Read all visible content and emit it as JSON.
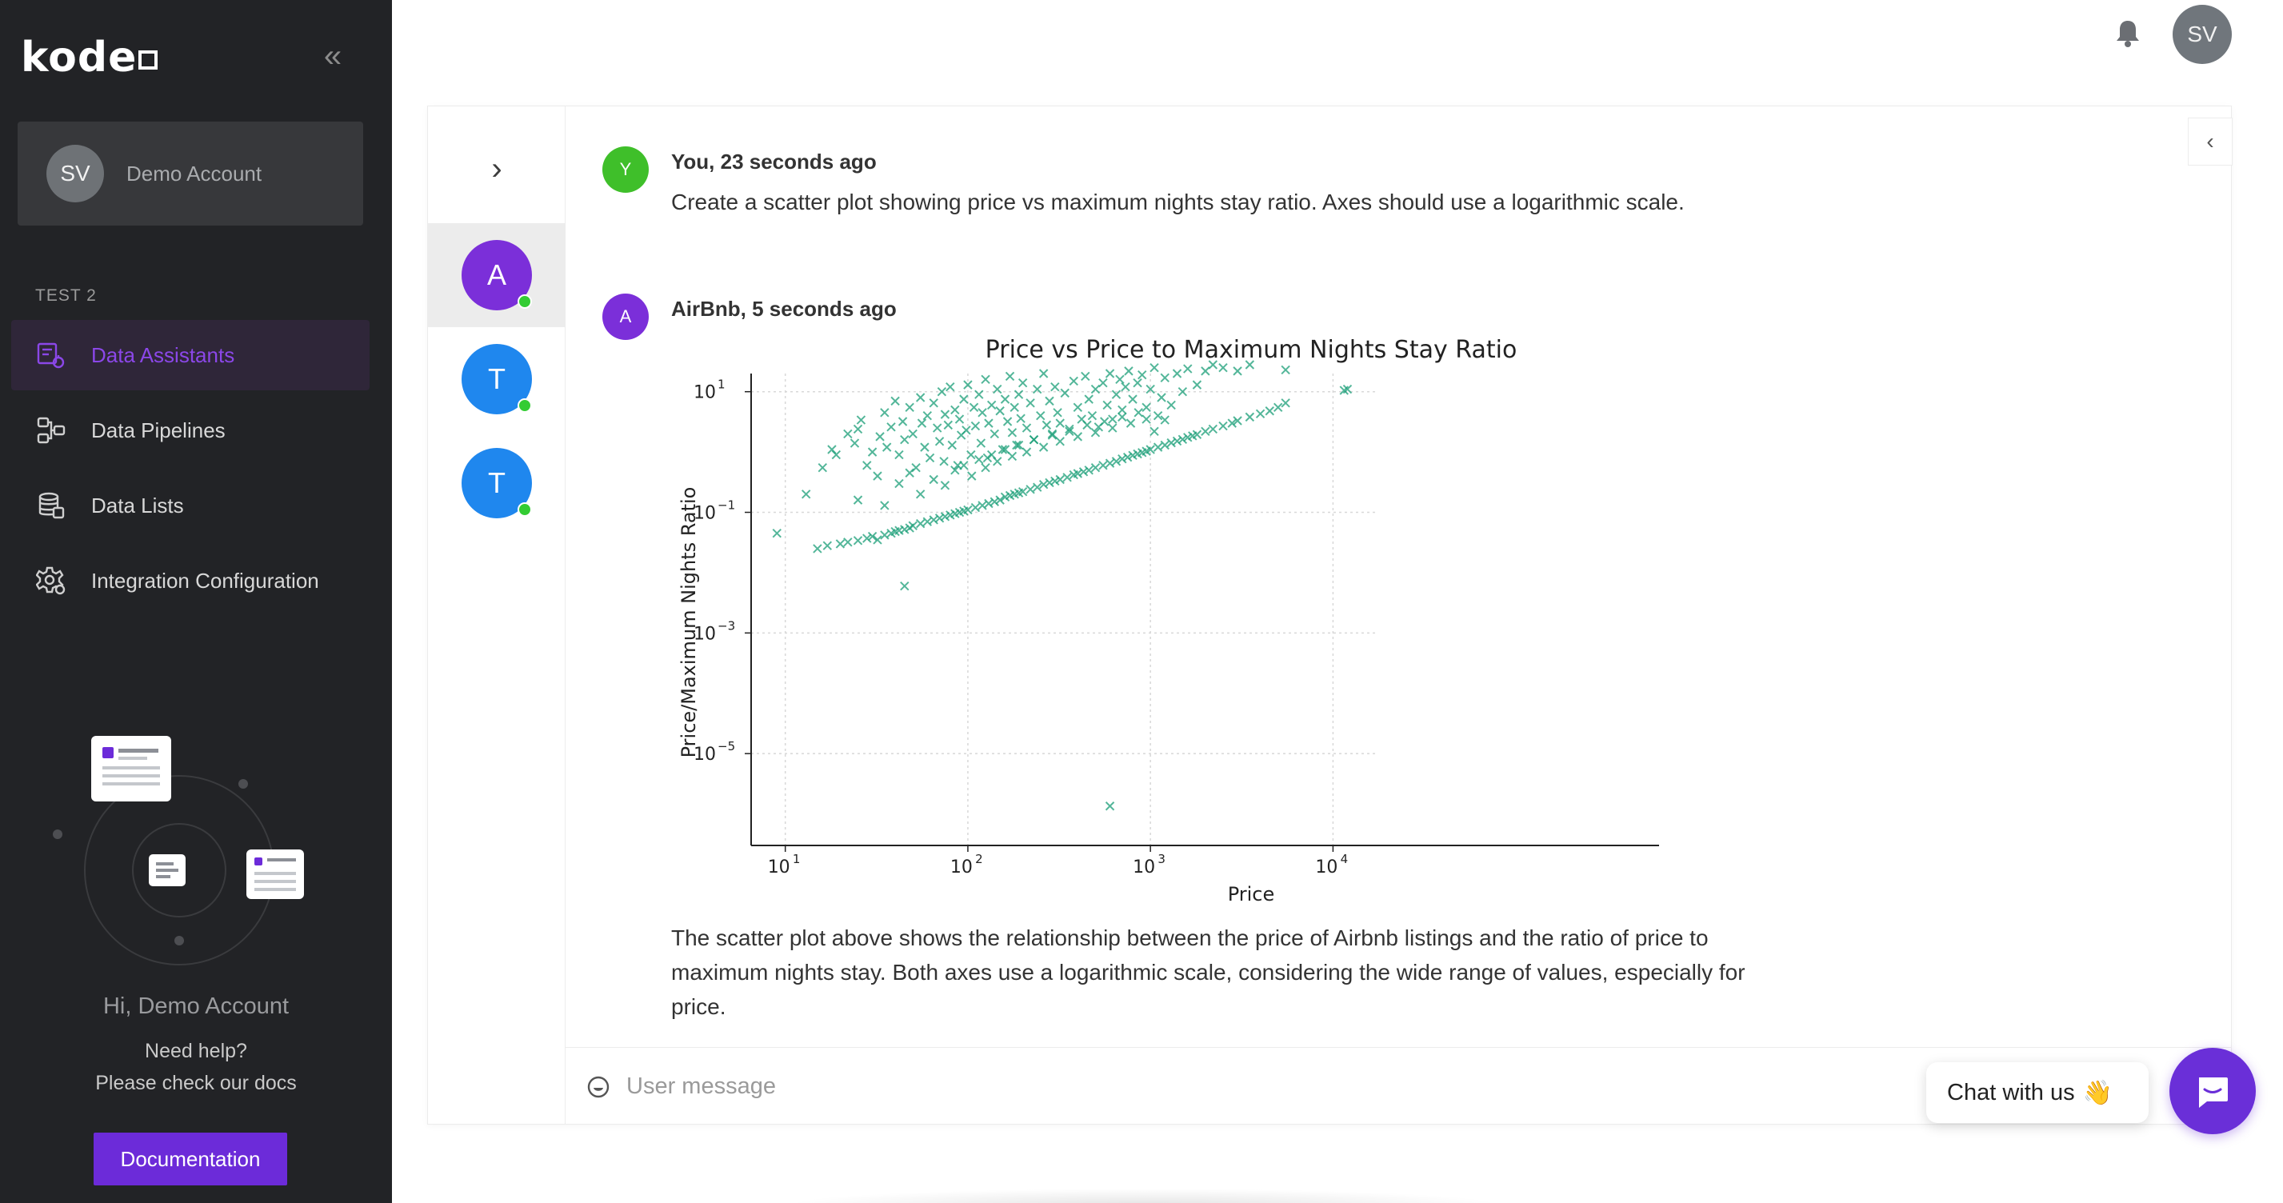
{
  "sidebar": {
    "logo": "kode",
    "account": {
      "initials": "SV",
      "name": "Demo Account"
    },
    "section_label": "TEST 2",
    "items": [
      {
        "label": "Data Assistants",
        "icon": "assistant-icon",
        "active": true
      },
      {
        "label": "Data Pipelines",
        "icon": "pipeline-icon",
        "active": false
      },
      {
        "label": "Data Lists",
        "icon": "database-icon",
        "active": false
      },
      {
        "label": "Integration Configuration",
        "icon": "settings-cog-icon",
        "active": false
      }
    ],
    "greeting": "Hi, Demo Account",
    "help_line1": "Need help?",
    "help_line2": "Please check our docs",
    "docs_button": "Documentation"
  },
  "header": {
    "avatar_initials": "SV"
  },
  "assistants": [
    {
      "initial": "A",
      "color": "#7b2fd9",
      "online": true,
      "active": true
    },
    {
      "initial": "T",
      "color": "#1f87ee",
      "online": true,
      "active": false
    },
    {
      "initial": "T",
      "color": "#1f87ee",
      "online": true,
      "active": false
    }
  ],
  "conversation": {
    "user_message": {
      "initial": "Y",
      "avatar_color": "#3fbf2a",
      "header": "You,  23 seconds ago",
      "text": "Create a scatter plot showing price vs maximum nights stay ratio. Axes should use a logarithmic scale."
    },
    "assistant_message": {
      "initial": "A",
      "avatar_color": "#7b2fd9",
      "header": "AirBnb,  5 seconds ago",
      "text": "The scatter plot above shows the relationship between the price of Airbnb listings and the ratio of price to maximum nights stay. Both axes use a logarithmic scale, considering the wide range of values, especially for price."
    }
  },
  "input": {
    "placeholder": "User message"
  },
  "chat_widget": {
    "label": "Chat with us",
    "emoji": "👋"
  },
  "chart_data": {
    "type": "scatter",
    "title": "Price vs Price to Maximum Nights Stay Ratio",
    "xlabel": "Price",
    "ylabel": "Price/Maximum Nights Ratio",
    "xscale": "log",
    "yscale": "log",
    "xlim": [
      6.5,
      17000
    ],
    "ylim": [
      3e-07,
      20
    ],
    "x_ticks": [
      {
        "base": "10",
        "exp": "1",
        "value": 10
      },
      {
        "base": "10",
        "exp": "2",
        "value": 100
      },
      {
        "base": "10",
        "exp": "3",
        "value": 1000
      },
      {
        "base": "10",
        "exp": "4",
        "value": 10000
      }
    ],
    "y_ticks": [
      {
        "base": "10",
        "exp": "1",
        "value": 10
      },
      {
        "base": "10",
        "exp": "−1",
        "value": 0.1
      },
      {
        "base": "10",
        "exp": "−3",
        "value": 0.001
      },
      {
        "base": "10",
        "exp": "−5",
        "value": 1e-05
      }
    ],
    "grid": true,
    "marker": "x",
    "color": "#1a9e77",
    "points": [
      [
        9,
        0.045
      ],
      [
        15,
        0.025
      ],
      [
        17,
        0.028
      ],
      [
        20,
        0.03
      ],
      [
        22,
        0.032
      ],
      [
        25,
        0.034
      ],
      [
        28,
        0.037
      ],
      [
        30,
        0.04
      ],
      [
        32,
        0.035
      ],
      [
        35,
        0.042
      ],
      [
        38,
        0.045
      ],
      [
        40,
        0.048
      ],
      [
        42,
        0.05
      ],
      [
        45,
        0.052
      ],
      [
        48,
        0.055
      ],
      [
        50,
        0.06
      ],
      [
        55,
        0.065
      ],
      [
        60,
        0.07
      ],
      [
        65,
        0.075
      ],
      [
        70,
        0.08
      ],
      [
        75,
        0.085
      ],
      [
        80,
        0.09
      ],
      [
        85,
        0.095
      ],
      [
        90,
        0.1
      ],
      [
        95,
        0.105
      ],
      [
        100,
        0.11
      ],
      [
        110,
        0.12
      ],
      [
        120,
        0.13
      ],
      [
        130,
        0.14
      ],
      [
        140,
        0.15
      ],
      [
        150,
        0.16
      ],
      [
        160,
        0.18
      ],
      [
        170,
        0.19
      ],
      [
        180,
        0.2
      ],
      [
        190,
        0.21
      ],
      [
        200,
        0.22
      ],
      [
        220,
        0.24
      ],
      [
        240,
        0.26
      ],
      [
        260,
        0.29
      ],
      [
        280,
        0.31
      ],
      [
        300,
        0.33
      ],
      [
        320,
        0.35
      ],
      [
        350,
        0.38
      ],
      [
        380,
        0.42
      ],
      [
        400,
        0.44
      ],
      [
        430,
        0.47
      ],
      [
        460,
        0.5
      ],
      [
        500,
        0.55
      ],
      [
        550,
        0.6
      ],
      [
        600,
        0.65
      ],
      [
        650,
        0.7
      ],
      [
        700,
        0.77
      ],
      [
        750,
        0.82
      ],
      [
        800,
        0.88
      ],
      [
        850,
        0.93
      ],
      [
        900,
        0.98
      ],
      [
        950,
        1.03
      ],
      [
        1000,
        1.1
      ],
      [
        1100,
        1.2
      ],
      [
        1200,
        1.3
      ],
      [
        1300,
        1.42
      ],
      [
        1400,
        1.52
      ],
      [
        1500,
        1.62
      ],
      [
        1600,
        1.75
      ],
      [
        1700,
        1.85
      ],
      [
        1800,
        1.95
      ],
      [
        2000,
        2.2
      ],
      [
        2200,
        2.4
      ],
      [
        2500,
        2.7
      ],
      [
        2800,
        3.0
      ],
      [
        3000,
        3.3
      ],
      [
        3500,
        3.8
      ],
      [
        4000,
        4.3
      ],
      [
        4500,
        4.8
      ],
      [
        5000,
        5.5
      ],
      [
        11500,
        10.5
      ],
      [
        12000,
        11
      ],
      [
        13,
        0.2
      ],
      [
        16,
        0.55
      ],
      [
        18,
        1.1
      ],
      [
        19,
        0.9
      ],
      [
        22,
        2.0
      ],
      [
        24,
        1.4
      ],
      [
        25,
        2.4
      ],
      [
        26,
        3.4
      ],
      [
        28,
        0.6
      ],
      [
        30,
        1.0
      ],
      [
        32,
        0.4
      ],
      [
        33,
        1.8
      ],
      [
        35,
        4.5
      ],
      [
        36,
        1.2
      ],
      [
        38,
        2.6
      ],
      [
        40,
        7.0
      ],
      [
        42,
        0.9
      ],
      [
        44,
        3.2
      ],
      [
        45,
        1.6
      ],
      [
        48,
        5.5
      ],
      [
        50,
        2.0
      ],
      [
        52,
        0.55
      ],
      [
        55,
        8.0
      ],
      [
        56,
        3.0
      ],
      [
        58,
        1.2
      ],
      [
        60,
        4.0
      ],
      [
        62,
        0.8
      ],
      [
        65,
        6.5
      ],
      [
        68,
        2.5
      ],
      [
        70,
        1.5
      ],
      [
        72,
        10
      ],
      [
        74,
        0.7
      ],
      [
        75,
        4.2
      ],
      [
        78,
        2.8
      ],
      [
        80,
        12
      ],
      [
        82,
        1.3
      ],
      [
        85,
        5.0
      ],
      [
        88,
        0.6
      ],
      [
        90,
        3.5
      ],
      [
        92,
        1.9
      ],
      [
        95,
        7.5
      ],
      [
        98,
        2.3
      ],
      [
        100,
        13
      ],
      [
        104,
        0.9
      ],
      [
        108,
        5.5
      ],
      [
        110,
        2.7
      ],
      [
        115,
        9.0
      ],
      [
        118,
        1.4
      ],
      [
        120,
        4.5
      ],
      [
        125,
        16
      ],
      [
        128,
        0.8
      ],
      [
        130,
        3.0
      ],
      [
        135,
        6.0
      ],
      [
        140,
        2.0
      ],
      [
        145,
        11
      ],
      [
        150,
        4.8
      ],
      [
        155,
        1.1
      ],
      [
        160,
        7.5
      ],
      [
        165,
        3.2
      ],
      [
        170,
        18
      ],
      [
        175,
        2.1
      ],
      [
        180,
        5.5
      ],
      [
        185,
        1.3
      ],
      [
        190,
        9.0
      ],
      [
        195,
        3.6
      ],
      [
        200,
        14
      ],
      [
        210,
        2.5
      ],
      [
        220,
        6.5
      ],
      [
        230,
        1.6
      ],
      [
        240,
        11
      ],
      [
        250,
        4.0
      ],
      [
        260,
        20
      ],
      [
        270,
        2.8
      ],
      [
        280,
        7.0
      ],
      [
        290,
        1.9
      ],
      [
        300,
        12
      ],
      [
        310,
        4.5
      ],
      [
        320,
        3.0
      ],
      [
        340,
        9.5
      ],
      [
        360,
        2.2
      ],
      [
        380,
        15
      ],
      [
        400,
        5.5
      ],
      [
        420,
        3.5
      ],
      [
        440,
        18
      ],
      [
        460,
        7.5
      ],
      [
        480,
        4.0
      ],
      [
        500,
        11
      ],
      [
        520,
        2.6
      ],
      [
        550,
        14
      ],
      [
        580,
        6.0
      ],
      [
        600,
        20
      ],
      [
        620,
        3.5
      ],
      [
        650,
        9.0
      ],
      [
        680,
        16
      ],
      [
        700,
        5.0
      ],
      [
        730,
        12
      ],
      [
        760,
        22
      ],
      [
        800,
        7.5
      ],
      [
        850,
        14
      ],
      [
        900,
        19
      ],
      [
        950,
        5.5
      ],
      [
        1000,
        11
      ],
      [
        1050,
        25
      ],
      [
        1100,
        4.0
      ],
      [
        1150,
        8.0
      ],
      [
        1200,
        17
      ],
      [
        1300,
        6.0
      ],
      [
        1400,
        20
      ],
      [
        1500,
        10
      ],
      [
        1600,
        24
      ],
      [
        1800,
        13
      ],
      [
        2000,
        22
      ],
      [
        2200,
        28
      ],
      [
        2500,
        25
      ],
      [
        3000,
        22
      ],
      [
        3500,
        28
      ],
      [
        5500,
        23
      ],
      [
        5500,
        6.5
      ],
      [
        600,
        1.35e-06
      ],
      [
        45,
        0.006
      ],
      [
        25,
        0.16
      ],
      [
        35,
        0.13
      ],
      [
        42,
        0.3
      ],
      [
        48,
        0.45
      ],
      [
        55,
        0.2
      ],
      [
        65,
        0.35
      ],
      [
        75,
        0.28
      ],
      [
        85,
        0.5
      ],
      [
        95,
        0.6
      ],
      [
        105,
        0.4
      ],
      [
        115,
        0.75
      ],
      [
        125,
        0.55
      ],
      [
        135,
        0.9
      ],
      [
        145,
        0.7
      ],
      [
        160,
        1.1
      ],
      [
        175,
        0.85
      ],
      [
        190,
        1.3
      ],
      [
        210,
        1.0
      ],
      [
        230,
        1.6
      ],
      [
        260,
        1.2
      ],
      [
        290,
        2.0
      ],
      [
        320,
        1.5
      ],
      [
        360,
        2.4
      ],
      [
        400,
        1.8
      ],
      [
        450,
        2.8
      ],
      [
        500,
        2.1
      ],
      [
        560,
        3.2
      ],
      [
        620,
        2.5
      ],
      [
        700,
        3.8
      ],
      [
        780,
        3.0
      ],
      [
        860,
        4.5
      ],
      [
        950,
        3.5
      ],
      [
        1050,
        2.2
      ],
      [
        1200,
        3.4
      ]
    ]
  }
}
